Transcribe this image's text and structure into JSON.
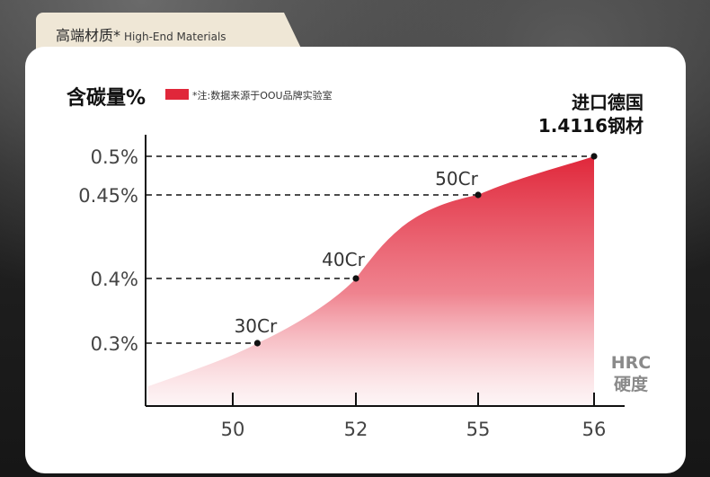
{
  "header": {
    "tab_title_cn": "高端材质*",
    "tab_title_en": "High-End Materials"
  },
  "legend": {
    "label": "*注:数据来源于OOU品牌实验室",
    "color": "#e0273a"
  },
  "annotation": {
    "line1": "进口德国",
    "line2": "1.4116钢材"
  },
  "chart_data": {
    "type": "area",
    "ylabel": "含碳量%",
    "xlabel_line1": "HRC",
    "xlabel_line2": "硬度",
    "x_ticks": [
      "50",
      "52",
      "55",
      "56"
    ],
    "y_ticks": [
      "0.3%",
      "0.4%",
      "0.45%",
      "0.5%"
    ],
    "points": [
      {
        "label": "30Cr",
        "x": 50.4,
        "y": 0.3
      },
      {
        "label": "40Cr",
        "x": 52.0,
        "y": 0.4
      },
      {
        "label": "50Cr",
        "x": 55.0,
        "y": 0.45
      },
      {
        "label": "",
        "x": 56.0,
        "y": 0.5
      }
    ],
    "grid": "dashed reference lines at marked points",
    "fill_color": "#e0273a"
  }
}
